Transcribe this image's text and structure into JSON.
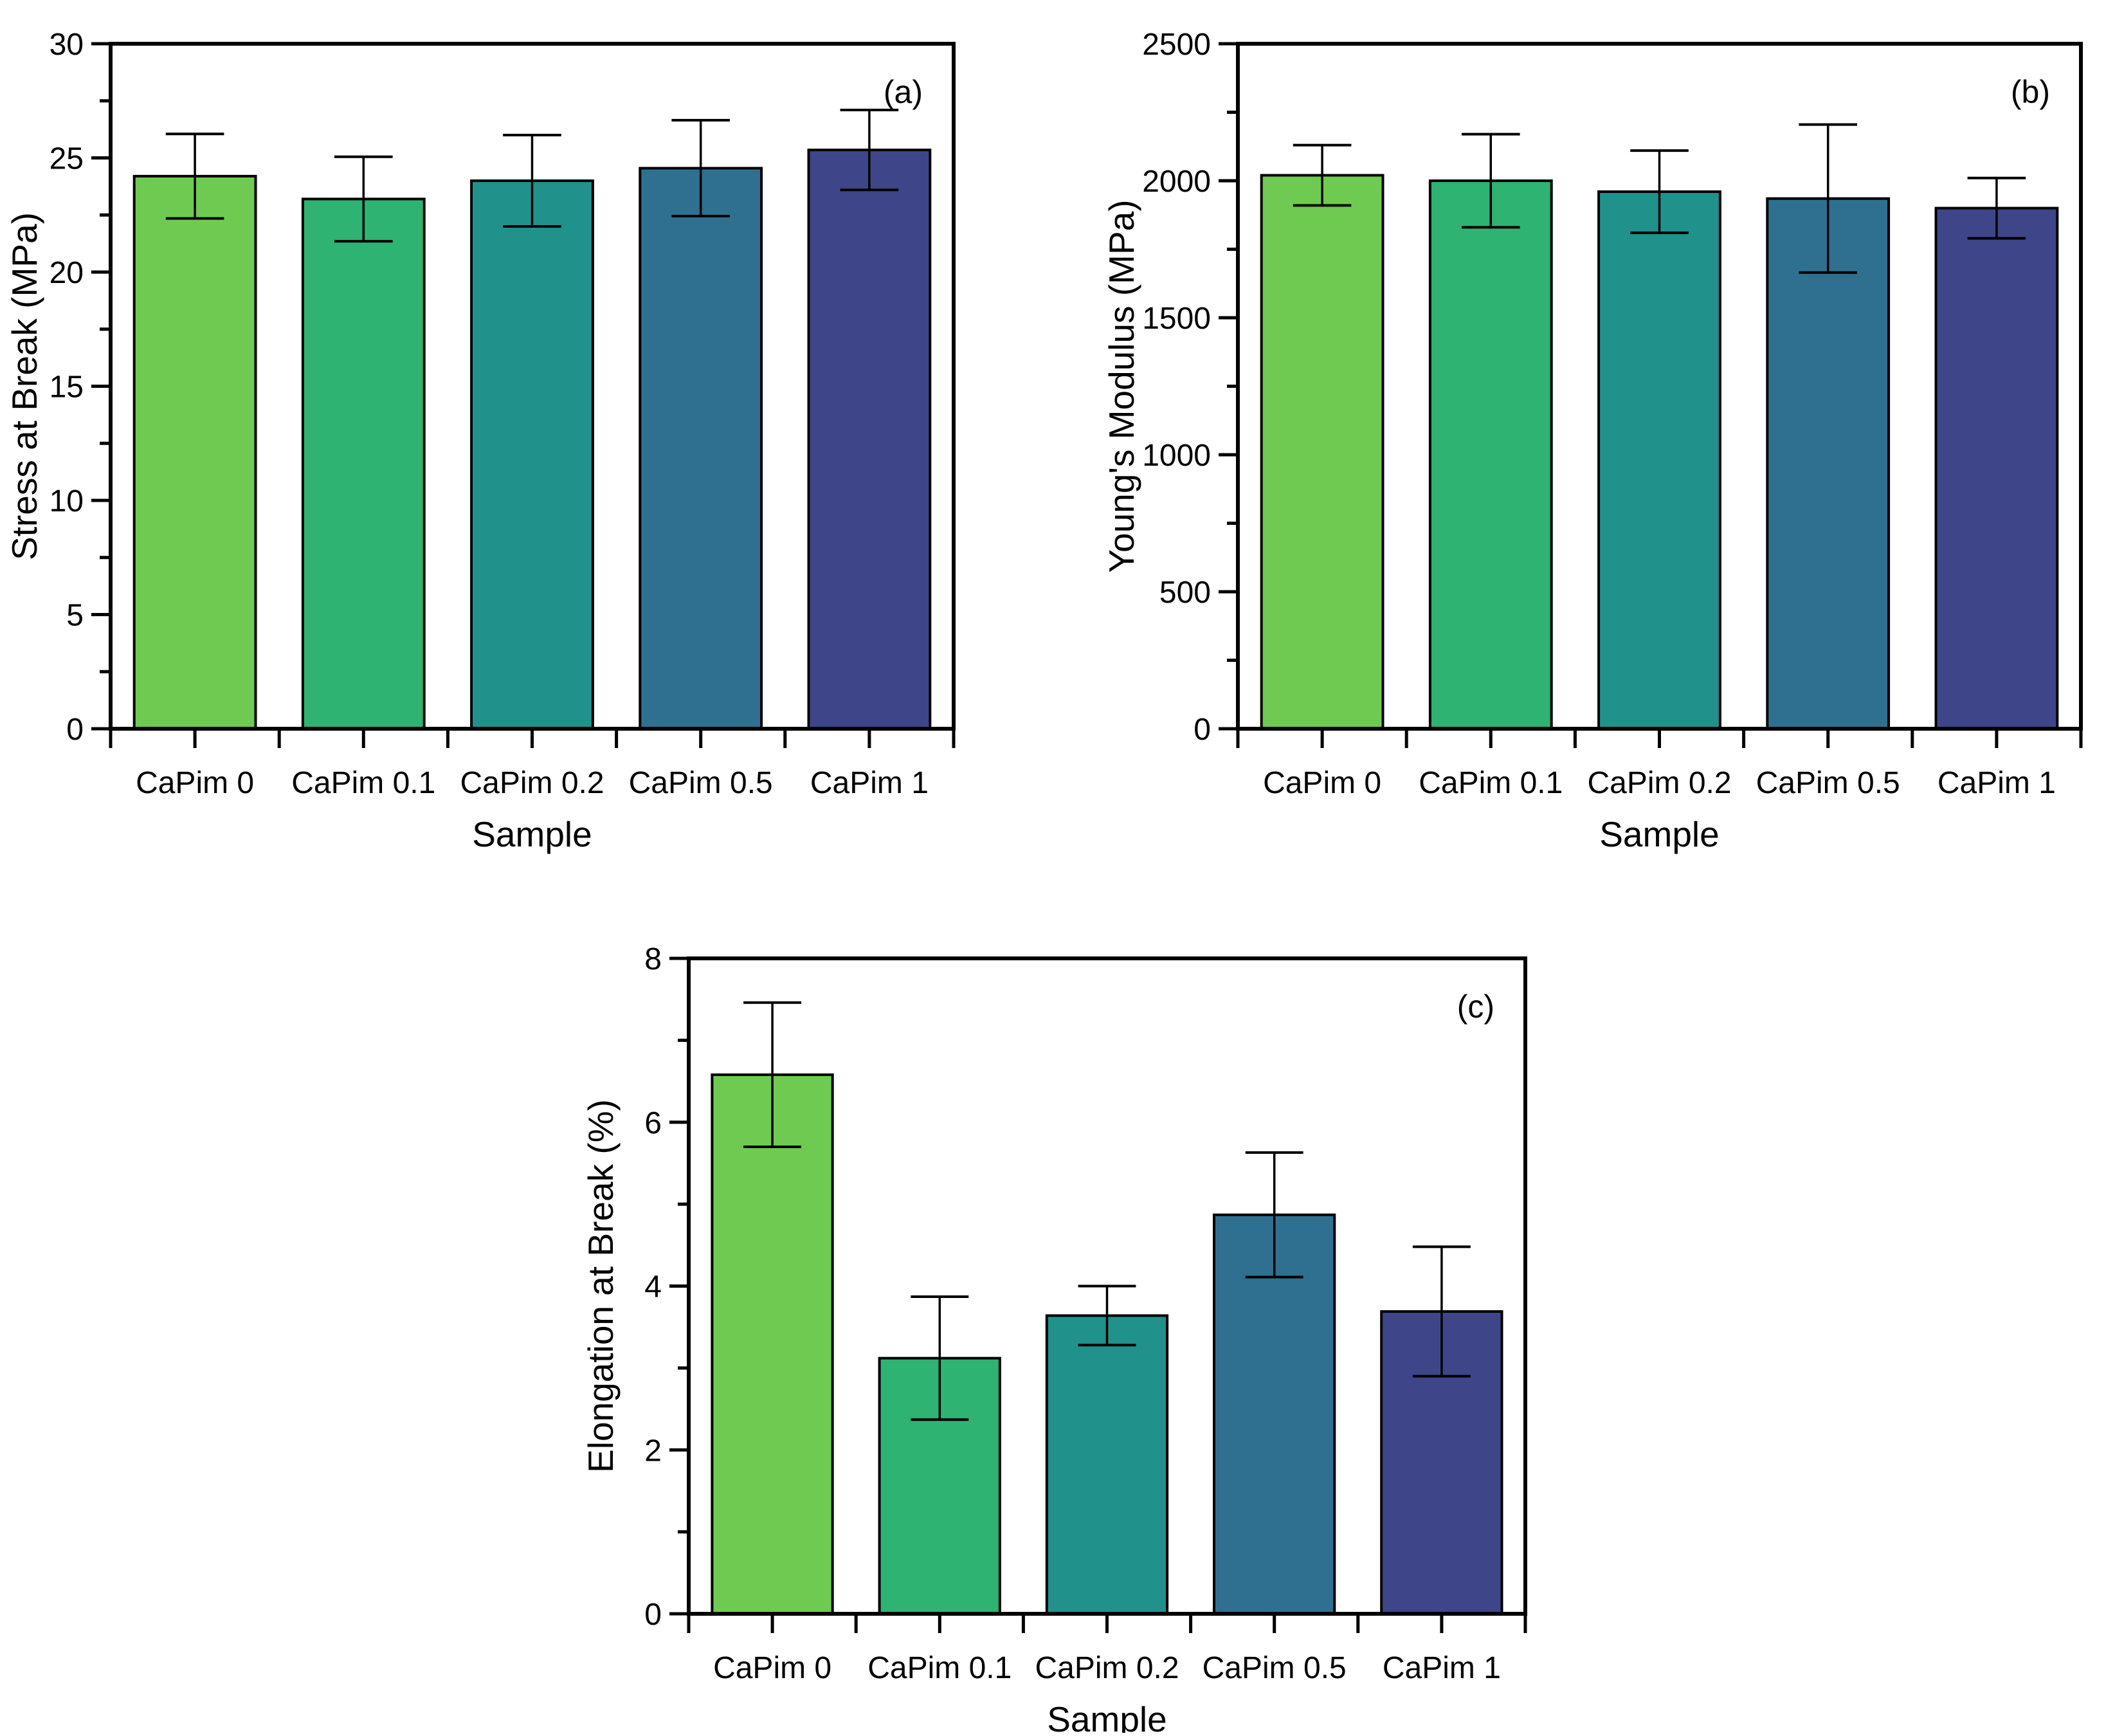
{
  "figure": {
    "background": "#ffffff",
    "axis_color": "#000000",
    "bar_outline_color": "#000000",
    "error_bar_color": "#000000"
  },
  "chart_data": [
    {
      "id": "a",
      "type": "bar",
      "panel_label": "(a)",
      "xlabel": "Sample",
      "ylabel": "Stress at Break (MPa)",
      "categories": [
        "CaPim 0",
        "CaPim 0.1",
        "CaPim 0.2",
        "CaPim 0.5",
        "CaPim 1"
      ],
      "values": [
        24.2,
        23.2,
        24.0,
        24.55,
        25.35
      ],
      "errors": [
        1.85,
        1.85,
        2.0,
        2.1,
        1.75
      ],
      "ylim": [
        0,
        30
      ],
      "ytick_step": 5,
      "yminor_step": 2.5,
      "ytick_labels": [
        "0",
        "5",
        "10",
        "15",
        "20",
        "25",
        "30"
      ],
      "bar_colors": [
        "#6fca52",
        "#2eb372",
        "#21918c",
        "#2f7091",
        "#3e4689"
      ],
      "grid": false,
      "legend": "none"
    },
    {
      "id": "b",
      "type": "bar",
      "panel_label": "(b)",
      "xlabel": "Sample",
      "ylabel": "Young's Modulus (MPa)",
      "categories": [
        "CaPim 0",
        "CaPim 0.1",
        "CaPim 0.2",
        "CaPim 0.5",
        "CaPim 1"
      ],
      "values": [
        2020,
        2000,
        1960,
        1935,
        1900
      ],
      "errors": [
        110,
        170,
        150,
        270,
        110
      ],
      "ylim": [
        0,
        2500
      ],
      "ytick_step": 500,
      "yminor_step": 250,
      "ytick_labels": [
        "0",
        "500",
        "1000",
        "1500",
        "2000",
        "2500"
      ],
      "bar_colors": [
        "#6fca52",
        "#2eb372",
        "#21918c",
        "#2f7091",
        "#3e4689"
      ],
      "grid": false,
      "legend": "none"
    },
    {
      "id": "c",
      "type": "bar",
      "panel_label": "(c)",
      "xlabel": "Sample",
      "ylabel": "Elongation at Break (%)",
      "categories": [
        "CaPim 0",
        "CaPim 0.1",
        "CaPim 0.2",
        "CaPim 0.5",
        "CaPim 1"
      ],
      "values": [
        6.58,
        3.12,
        3.64,
        4.87,
        3.69
      ],
      "errors": [
        0.88,
        0.75,
        0.36,
        0.76,
        0.79
      ],
      "ylim": [
        0,
        8
      ],
      "ytick_step": 2,
      "yminor_step": 1,
      "ytick_labels": [
        "0",
        "2",
        "4",
        "6",
        "8"
      ],
      "bar_colors": [
        "#6fca52",
        "#2eb372",
        "#21918c",
        "#2f7091",
        "#3e4689"
      ],
      "grid": false,
      "legend": "none"
    }
  ]
}
